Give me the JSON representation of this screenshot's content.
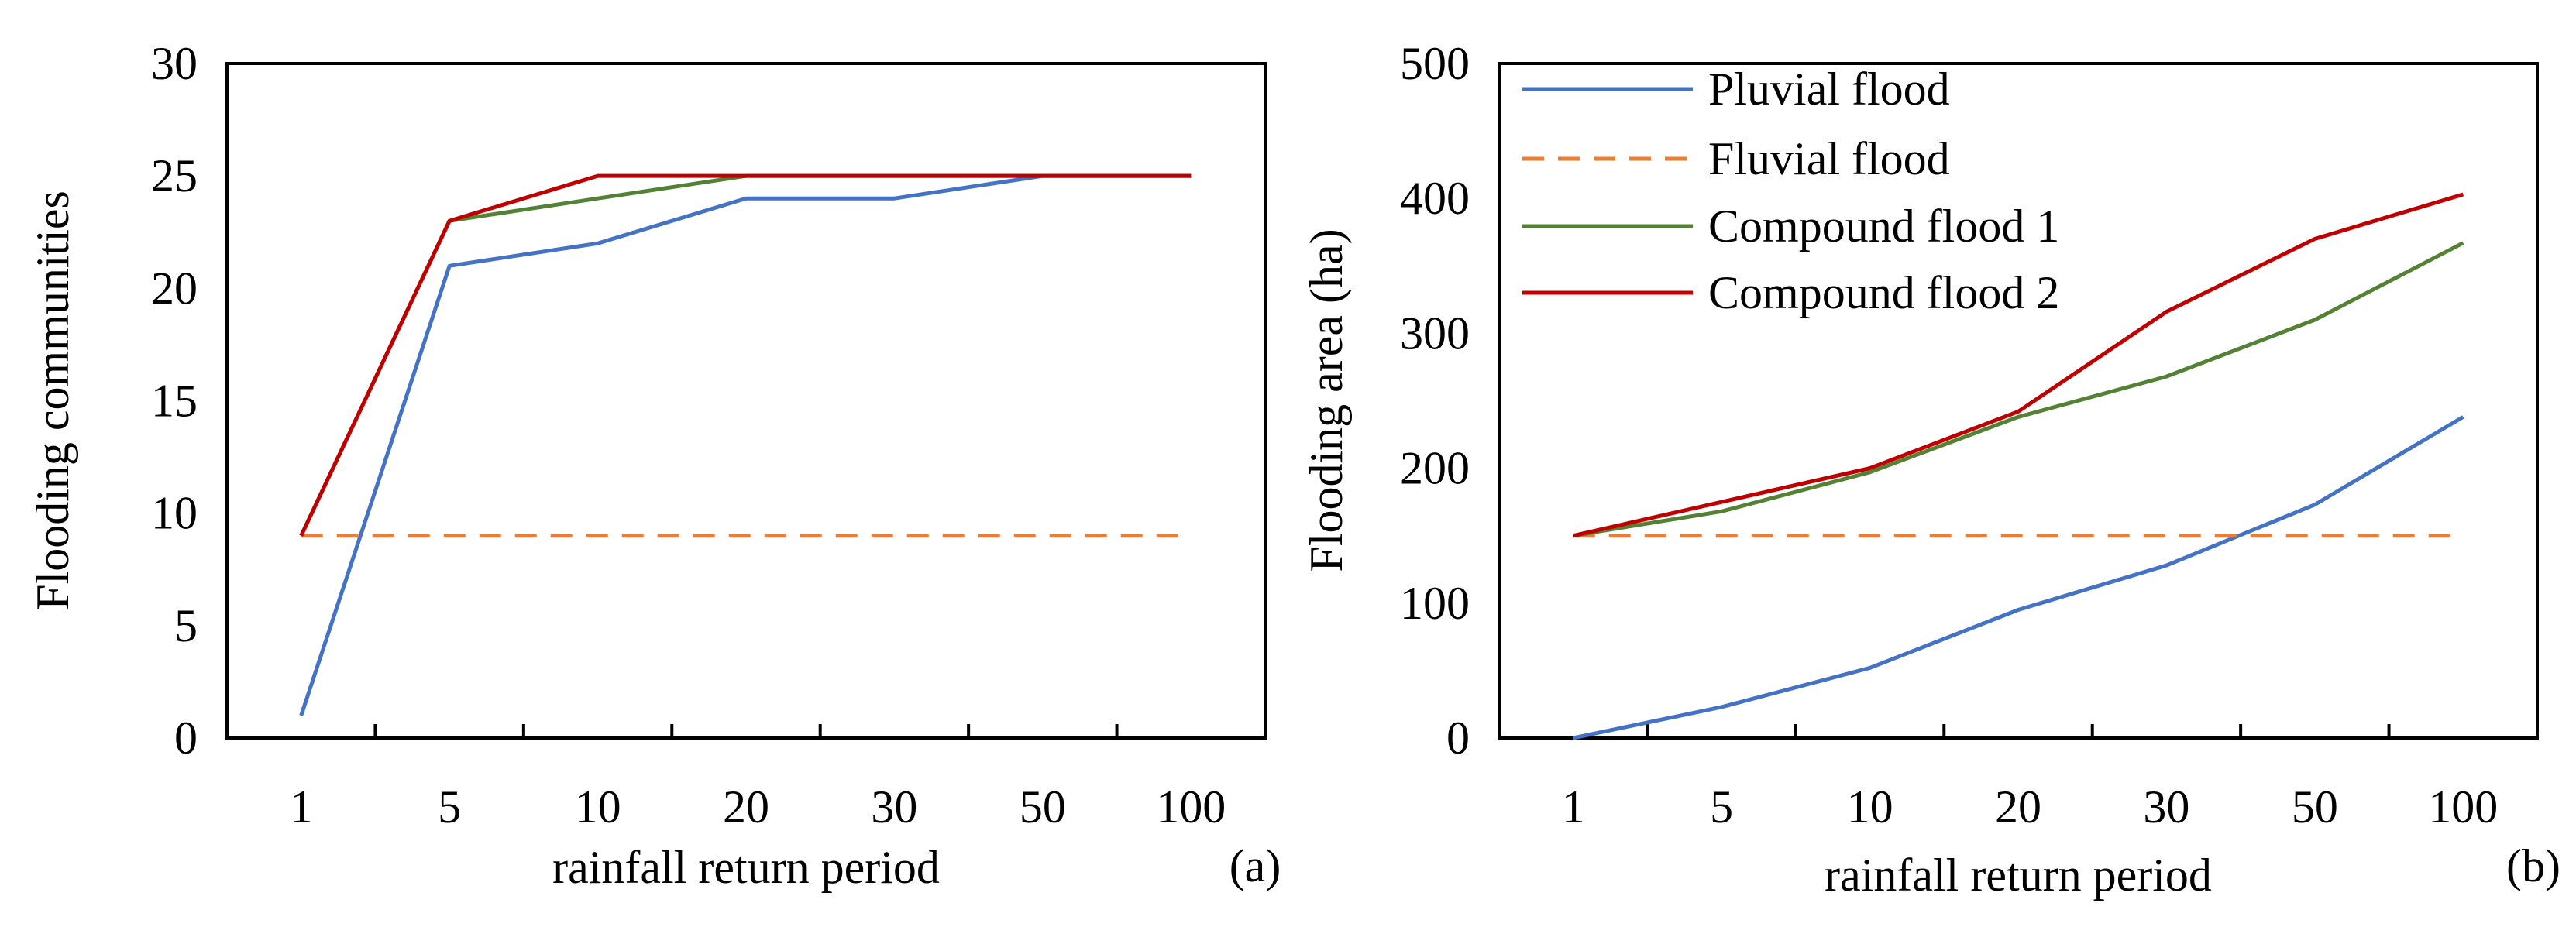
{
  "chart_data": [
    {
      "type": "line",
      "panel_label": "(a)",
      "title": "",
      "xlabel": "rainfall return period",
      "ylabel": "Flooding communities",
      "categories": [
        "1",
        "5",
        "10",
        "20",
        "30",
        "50",
        "100"
      ],
      "ylim": [
        0,
        30
      ],
      "yticks": [
        "0",
        "5",
        "10",
        "15",
        "20",
        "25",
        "30"
      ],
      "grid": false,
      "legend": null,
      "series": [
        {
          "name": "Pluvial flood",
          "color": "#4472C4",
          "dash": "solid",
          "values": [
            1,
            21,
            22,
            24,
            24,
            25,
            25
          ]
        },
        {
          "name": "Fluvial flood",
          "color": "#ED7D31",
          "dash": "dashed",
          "values": [
            9,
            9,
            9,
            9,
            9,
            9,
            9
          ]
        },
        {
          "name": "Compound flood 1",
          "color": "#548235",
          "dash": "solid",
          "values": [
            9,
            23,
            24,
            25,
            25,
            25,
            25
          ]
        },
        {
          "name": "Compound flood 2",
          "color": "#C00000",
          "dash": "solid",
          "values": [
            9,
            23,
            25,
            25,
            25,
            25,
            25
          ]
        }
      ]
    },
    {
      "type": "line",
      "panel_label": "(b)",
      "title": "",
      "xlabel": "rainfall return period",
      "ylabel": "Flooding area (ha)",
      "categories": [
        "1",
        "5",
        "10",
        "20",
        "30",
        "50",
        "100"
      ],
      "ylim": [
        0,
        500
      ],
      "yticks": [
        "0",
        "100",
        "200",
        "300",
        "400",
        "500"
      ],
      "grid": false,
      "legend": "top-left",
      "series": [
        {
          "name": "Pluvial flood",
          "color": "#4472C4",
          "dash": "solid",
          "values": [
            0,
            23,
            52,
            95,
            128,
            173,
            238
          ]
        },
        {
          "name": "Fluvial flood",
          "color": "#ED7D31",
          "dash": "dashed",
          "values": [
            150,
            150,
            150,
            150,
            150,
            150,
            150
          ]
        },
        {
          "name": "Compound flood 1",
          "color": "#548235",
          "dash": "solid",
          "values": [
            150,
            168,
            197,
            238,
            268,
            310,
            367
          ]
        },
        {
          "name": "Compound flood 2",
          "color": "#C00000",
          "dash": "solid",
          "values": [
            150,
            175,
            200,
            242,
            316,
            370,
            403
          ]
        }
      ]
    }
  ]
}
